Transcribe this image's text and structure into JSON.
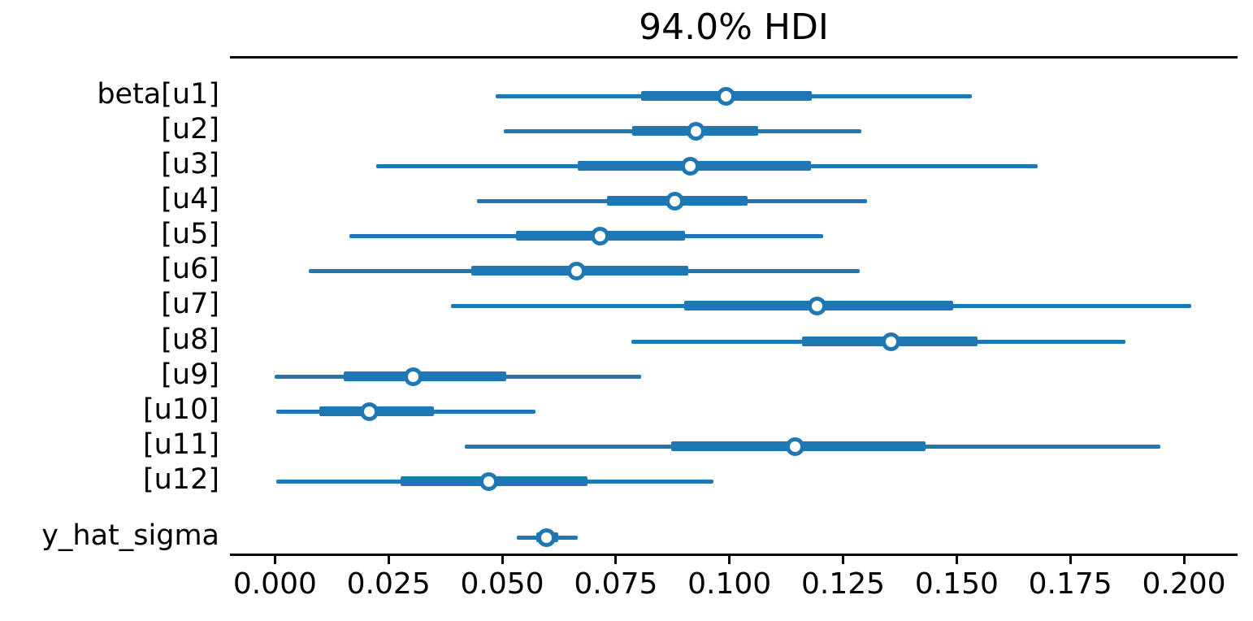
{
  "title": "94.0% HDI",
  "accent_color": "#1f77b4",
  "chart_data": {
    "type": "forest",
    "title": "94.0% HDI",
    "xlabel": "",
    "ylabel": "",
    "xlim": [
      -0.0099,
      0.2118
    ],
    "grid": false,
    "legend": false,
    "x_ticks": [
      0.0,
      0.025,
      0.05,
      0.075,
      0.1,
      0.125,
      0.15,
      0.175,
      0.2
    ],
    "x_tick_labels": [
      "0.000",
      "0.025",
      "0.050",
      "0.075",
      "0.100",
      "0.125",
      "0.150",
      "0.175",
      "0.200"
    ],
    "rows": [
      {
        "label": "beta[u1]",
        "hdi_low": 0.0486,
        "hdi_high": 0.1533,
        "iqr_low": 0.0806,
        "iqr_high": 0.1182,
        "median": 0.0992
      },
      {
        "label": "[u2]",
        "hdi_low": 0.0503,
        "hdi_high": 0.129,
        "iqr_low": 0.0786,
        "iqr_high": 0.1064,
        "median": 0.0927
      },
      {
        "label": "[u3]",
        "hdi_low": 0.0223,
        "hdi_high": 0.1678,
        "iqr_low": 0.0667,
        "iqr_high": 0.1179,
        "median": 0.0913
      },
      {
        "label": "[u4]",
        "hdi_low": 0.0444,
        "hdi_high": 0.1302,
        "iqr_low": 0.073,
        "iqr_high": 0.104,
        "median": 0.0879
      },
      {
        "label": "[u5]",
        "hdi_low": 0.0164,
        "hdi_high": 0.1206,
        "iqr_low": 0.053,
        "iqr_high": 0.0903,
        "median": 0.0715
      },
      {
        "label": "[u6]",
        "hdi_low": 0.0074,
        "hdi_high": 0.1287,
        "iqr_low": 0.0432,
        "iqr_high": 0.0909,
        "median": 0.0664
      },
      {
        "label": "[u7]",
        "hdi_low": 0.0387,
        "hdi_high": 0.2016,
        "iqr_low": 0.09,
        "iqr_high": 0.1492,
        "median": 0.1192
      },
      {
        "label": "[u8]",
        "hdi_low": 0.0784,
        "hdi_high": 0.1871,
        "iqr_low": 0.1159,
        "iqr_high": 0.1546,
        "median": 0.1356
      },
      {
        "label": "[u9]",
        "hdi_low": 0.0,
        "hdi_high": 0.0806,
        "iqr_low": 0.0151,
        "iqr_high": 0.0508,
        "median": 0.0305
      },
      {
        "label": "[u10]",
        "hdi_low": 0.0003,
        "hdi_high": 0.0574,
        "iqr_low": 0.0098,
        "iqr_high": 0.035,
        "median": 0.0208
      },
      {
        "label": "[u11]",
        "hdi_low": 0.0417,
        "hdi_high": 0.1949,
        "iqr_low": 0.0871,
        "iqr_high": 0.1432,
        "median": 0.1144
      },
      {
        "label": "[u12]",
        "hdi_low": 0.0003,
        "hdi_high": 0.0965,
        "iqr_low": 0.0277,
        "iqr_high": 0.0688,
        "median": 0.0471
      },
      {
        "label": "y_hat_sigma",
        "hdi_low": 0.0533,
        "hdi_high": 0.0667,
        "iqr_low": 0.0575,
        "iqr_high": 0.0623,
        "median": 0.0597
      }
    ]
  }
}
